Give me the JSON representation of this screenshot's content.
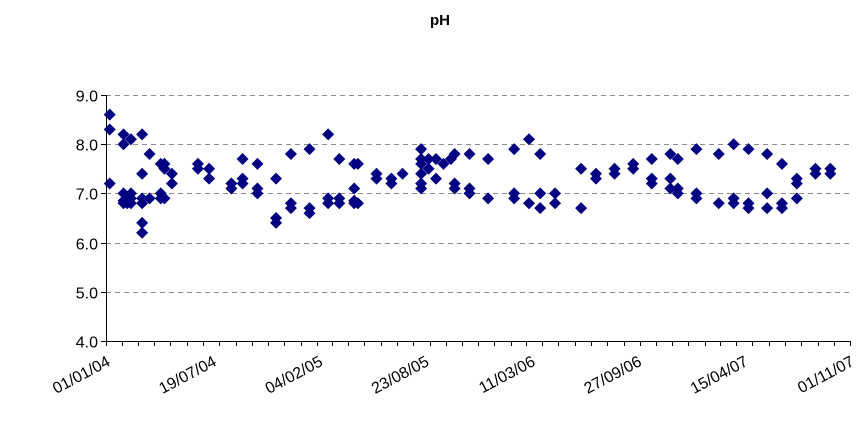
{
  "chart_data": {
    "type": "scatter",
    "title": "pH",
    "xlabel": "",
    "ylabel": "",
    "ylim": [
      4.0,
      9.0
    ],
    "xlim": [
      "2004-01-01",
      "2007-11-01"
    ],
    "y_ticks": [
      "4.0",
      "5.0",
      "6.0",
      "7.0",
      "8.0",
      "9.0"
    ],
    "x_ticks": [
      {
        "date": "2004-01-01",
        "label": "01/01/04"
      },
      {
        "date": "2004-07-19",
        "label": "19/07/04"
      },
      {
        "date": "2005-02-04",
        "label": "04/02/05"
      },
      {
        "date": "2005-08-23",
        "label": "23/08/05"
      },
      {
        "date": "2006-03-11",
        "label": "11/03/06"
      },
      {
        "date": "2006-09-27",
        "label": "27/09/06"
      },
      {
        "date": "2007-04-15",
        "label": "15/04/07"
      },
      {
        "date": "2007-11-01",
        "label": "01/11/07"
      }
    ],
    "grid": true,
    "legend": "none",
    "marker": "diamond",
    "marker_color": "#000080",
    "series": [
      {
        "points": [
          {
            "x": "2004-01-08",
            "y": 8.6
          },
          {
            "x": "2004-01-08",
            "y": 8.3
          },
          {
            "x": "2004-01-08",
            "y": 7.2
          },
          {
            "x": "2004-02-03",
            "y": 8.2
          },
          {
            "x": "2004-02-03",
            "y": 8.0
          },
          {
            "x": "2004-02-03",
            "y": 7.0
          },
          {
            "x": "2004-02-03",
            "y": 6.85
          },
          {
            "x": "2004-02-03",
            "y": 6.8
          },
          {
            "x": "2004-02-10",
            "y": 6.9
          },
          {
            "x": "2004-02-10",
            "y": 6.8
          },
          {
            "x": "2004-02-17",
            "y": 8.1
          },
          {
            "x": "2004-02-17",
            "y": 7.0
          },
          {
            "x": "2004-02-17",
            "y": 6.9
          },
          {
            "x": "2004-02-17",
            "y": 6.8
          },
          {
            "x": "2004-03-09",
            "y": 8.2
          },
          {
            "x": "2004-03-09",
            "y": 7.4
          },
          {
            "x": "2004-03-09",
            "y": 6.9
          },
          {
            "x": "2004-03-09",
            "y": 6.8
          },
          {
            "x": "2004-03-09",
            "y": 6.4
          },
          {
            "x": "2004-03-09",
            "y": 6.2
          },
          {
            "x": "2004-03-23",
            "y": 7.8
          },
          {
            "x": "2004-03-23",
            "y": 6.9
          },
          {
            "x": "2004-04-13",
            "y": 7.6
          },
          {
            "x": "2004-04-13",
            "y": 7.0
          },
          {
            "x": "2004-04-13",
            "y": 6.9
          },
          {
            "x": "2004-04-20",
            "y": 7.6
          },
          {
            "x": "2004-04-20",
            "y": 7.5
          },
          {
            "x": "2004-04-20",
            "y": 6.9
          },
          {
            "x": "2004-05-04",
            "y": 7.4
          },
          {
            "x": "2004-05-04",
            "y": 7.2
          },
          {
            "x": "2004-06-22",
            "y": 7.6
          },
          {
            "x": "2004-06-22",
            "y": 7.5
          },
          {
            "x": "2004-07-13",
            "y": 7.5
          },
          {
            "x": "2004-07-13",
            "y": 7.3
          },
          {
            "x": "2004-08-24",
            "y": 7.2
          },
          {
            "x": "2004-08-24",
            "y": 7.1
          },
          {
            "x": "2004-09-14",
            "y": 7.7
          },
          {
            "x": "2004-09-14",
            "y": 7.3
          },
          {
            "x": "2004-09-14",
            "y": 7.2
          },
          {
            "x": "2004-10-12",
            "y": 7.6
          },
          {
            "x": "2004-10-12",
            "y": 7.1
          },
          {
            "x": "2004-10-12",
            "y": 7.0
          },
          {
            "x": "2004-11-16",
            "y": 7.3
          },
          {
            "x": "2004-11-16",
            "y": 6.5
          },
          {
            "x": "2004-11-16",
            "y": 6.4
          },
          {
            "x": "2004-12-14",
            "y": 7.8
          },
          {
            "x": "2004-12-14",
            "y": 6.8
          },
          {
            "x": "2004-12-14",
            "y": 6.7
          },
          {
            "x": "2005-01-18",
            "y": 7.9
          },
          {
            "x": "2005-01-18",
            "y": 6.7
          },
          {
            "x": "2005-01-18",
            "y": 6.6
          },
          {
            "x": "2005-02-22",
            "y": 8.2
          },
          {
            "x": "2005-02-22",
            "y": 6.9
          },
          {
            "x": "2005-02-22",
            "y": 6.8
          },
          {
            "x": "2005-03-15",
            "y": 7.7
          },
          {
            "x": "2005-03-15",
            "y": 6.9
          },
          {
            "x": "2005-03-15",
            "y": 6.8
          },
          {
            "x": "2005-04-12",
            "y": 7.6
          },
          {
            "x": "2005-04-12",
            "y": 7.1
          },
          {
            "x": "2005-04-12",
            "y": 6.85
          },
          {
            "x": "2005-04-12",
            "y": 6.8
          },
          {
            "x": "2005-04-19",
            "y": 7.6
          },
          {
            "x": "2005-04-19",
            "y": 6.8
          },
          {
            "x": "2005-05-24",
            "y": 7.4
          },
          {
            "x": "2005-05-24",
            "y": 7.3
          },
          {
            "x": "2005-06-21",
            "y": 7.3
          },
          {
            "x": "2005-06-21",
            "y": 7.2
          },
          {
            "x": "2005-07-12",
            "y": 7.4
          },
          {
            "x": "2005-08-16",
            "y": 7.9
          },
          {
            "x": "2005-08-16",
            "y": 7.7
          },
          {
            "x": "2005-08-16",
            "y": 7.6
          },
          {
            "x": "2005-08-16",
            "y": 7.4
          },
          {
            "x": "2005-08-16",
            "y": 7.2
          },
          {
            "x": "2005-08-16",
            "y": 7.1
          },
          {
            "x": "2005-08-30",
            "y": 7.7
          },
          {
            "x": "2005-08-30",
            "y": 7.5
          },
          {
            "x": "2005-09-13",
            "y": 7.7
          },
          {
            "x": "2005-09-13",
            "y": 7.3
          },
          {
            "x": "2005-09-27",
            "y": 7.6
          },
          {
            "x": "2005-10-11",
            "y": 7.7
          },
          {
            "x": "2005-10-18",
            "y": 7.8
          },
          {
            "x": "2005-10-18",
            "y": 7.2
          },
          {
            "x": "2005-10-18",
            "y": 7.1
          },
          {
            "x": "2005-11-15",
            "y": 7.8
          },
          {
            "x": "2005-11-15",
            "y": 7.1
          },
          {
            "x": "2005-11-15",
            "y": 7.0
          },
          {
            "x": "2005-12-20",
            "y": 7.7
          },
          {
            "x": "2005-12-20",
            "y": 6.9
          },
          {
            "x": "2006-02-07",
            "y": 7.9
          },
          {
            "x": "2006-02-07",
            "y": 7.0
          },
          {
            "x": "2006-02-07",
            "y": 6.9
          },
          {
            "x": "2006-03-07",
            "y": 8.1
          },
          {
            "x": "2006-03-07",
            "y": 6.8
          },
          {
            "x": "2006-03-28",
            "y": 7.8
          },
          {
            "x": "2006-03-28",
            "y": 7.0
          },
          {
            "x": "2006-03-28",
            "y": 6.7
          },
          {
            "x": "2006-04-25",
            "y": 7.0
          },
          {
            "x": "2006-04-25",
            "y": 6.8
          },
          {
            "x": "2006-06-13",
            "y": 7.5
          },
          {
            "x": "2006-06-13",
            "y": 6.7
          },
          {
            "x": "2006-07-11",
            "y": 7.4
          },
          {
            "x": "2006-07-11",
            "y": 7.3
          },
          {
            "x": "2006-08-15",
            "y": 7.5
          },
          {
            "x": "2006-08-15",
            "y": 7.4
          },
          {
            "x": "2006-09-19",
            "y": 7.6
          },
          {
            "x": "2006-09-19",
            "y": 7.5
          },
          {
            "x": "2006-10-24",
            "y": 7.7
          },
          {
            "x": "2006-10-24",
            "y": 7.3
          },
          {
            "x": "2006-10-24",
            "y": 7.2
          },
          {
            "x": "2006-11-28",
            "y": 7.8
          },
          {
            "x": "2006-11-28",
            "y": 7.3
          },
          {
            "x": "2006-11-28",
            "y": 7.1
          },
          {
            "x": "2006-12-12",
            "y": 7.7
          },
          {
            "x": "2006-12-12",
            "y": 7.1
          },
          {
            "x": "2006-12-12",
            "y": 7.0
          },
          {
            "x": "2007-01-16",
            "y": 7.9
          },
          {
            "x": "2007-01-16",
            "y": 7.0
          },
          {
            "x": "2007-01-16",
            "y": 6.9
          },
          {
            "x": "2007-02-27",
            "y": 7.8
          },
          {
            "x": "2007-02-27",
            "y": 6.8
          },
          {
            "x": "2007-03-27",
            "y": 8.0
          },
          {
            "x": "2007-03-27",
            "y": 6.9
          },
          {
            "x": "2007-03-27",
            "y": 6.8
          },
          {
            "x": "2007-04-24",
            "y": 7.9
          },
          {
            "x": "2007-04-24",
            "y": 6.8
          },
          {
            "x": "2007-04-24",
            "y": 6.7
          },
          {
            "x": "2007-05-29",
            "y": 7.8
          },
          {
            "x": "2007-05-29",
            "y": 7.0
          },
          {
            "x": "2007-05-29",
            "y": 6.7
          },
          {
            "x": "2007-06-26",
            "y": 7.6
          },
          {
            "x": "2007-06-26",
            "y": 6.8
          },
          {
            "x": "2007-06-26",
            "y": 6.7
          },
          {
            "x": "2007-07-24",
            "y": 7.3
          },
          {
            "x": "2007-07-24",
            "y": 7.2
          },
          {
            "x": "2007-07-24",
            "y": 6.9
          },
          {
            "x": "2007-08-28",
            "y": 7.5
          },
          {
            "x": "2007-08-28",
            "y": 7.4
          },
          {
            "x": "2007-09-25",
            "y": 7.5
          },
          {
            "x": "2007-09-25",
            "y": 7.4
          }
        ]
      }
    ]
  }
}
